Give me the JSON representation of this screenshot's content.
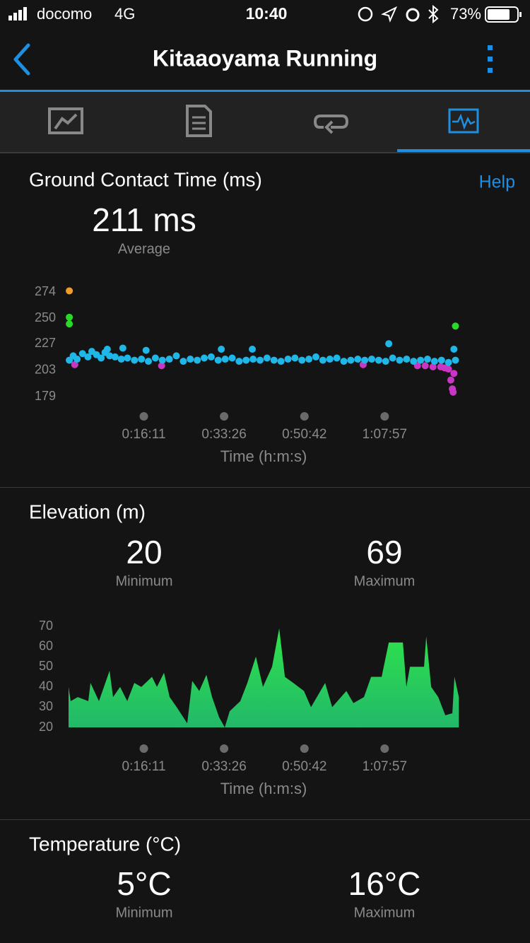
{
  "status_bar": {
    "carrier": "docomo",
    "network": "4G",
    "time": "10:40",
    "battery": "73%"
  },
  "header": {
    "title": "Kitaaoyama Running"
  },
  "sections": [
    {
      "title": "Ground Contact Time (ms)",
      "help": "Help",
      "stats": [
        {
          "value": "211 ms",
          "label": "Average"
        }
      ]
    },
    {
      "title": "Elevation (m)",
      "stats": [
        {
          "value": "20",
          "label": "Minimum"
        },
        {
          "value": "69",
          "label": "Maximum"
        }
      ]
    },
    {
      "title": "Temperature (°C)",
      "stats": [
        {
          "value": "5°C",
          "label": "Minimum"
        },
        {
          "value": "16°C",
          "label": "Maximum"
        }
      ]
    }
  ],
  "chart_data": [
    {
      "type": "scatter",
      "x_label": "Time (h:m:s)",
      "xlim": [
        0,
        5040
      ],
      "ylim": [
        179,
        274
      ],
      "xticks": [
        {
          "value": 971,
          "label": "0:16:11"
        },
        {
          "value": 2006,
          "label": "0:33:26"
        },
        {
          "value": 3042,
          "label": "0:50:42"
        },
        {
          "value": 4077,
          "label": "1:07:57"
        }
      ],
      "yticks": [
        179,
        203,
        227,
        250,
        274
      ],
      "series": [
        {
          "color": "#c936c4",
          "x": [
            80,
            1200,
            3800,
            4500,
            4600,
            4700,
            4800,
            4850,
            4900,
            4930,
            4950,
            4960,
            4970
          ],
          "values": [
            208,
            207,
            208,
            207,
            207,
            206,
            206,
            205,
            204,
            194,
            186,
            183,
            200
          ]
        },
        {
          "color": "#1fb6e8",
          "x": [
            10,
            60,
            110,
            180,
            250,
            300,
            360,
            420,
            470,
            530,
            600,
            680,
            760,
            850,
            940,
            1030,
            1120,
            1210,
            1300,
            1390,
            1480,
            1570,
            1660,
            1750,
            1840,
            1930,
            2020,
            2110,
            2200,
            2290,
            2380,
            2470,
            2560,
            2650,
            2740,
            2830,
            2920,
            3010,
            3100,
            3190,
            3280,
            3370,
            3460,
            3550,
            3640,
            3730,
            3820,
            3910,
            4000,
            4090,
            4180,
            4270,
            4360,
            4450,
            4540,
            4630,
            4720,
            4810,
            4900,
            4990,
            1000,
            1970,
            2370,
            4130,
            4970,
            500,
            700
          ],
          "values": [
            212,
            216,
            213,
            218,
            215,
            220,
            217,
            214,
            219,
            216,
            215,
            213,
            214,
            212,
            213,
            211,
            214,
            212,
            213,
            216,
            211,
            213,
            212,
            214,
            215,
            212,
            213,
            214,
            211,
            212,
            213,
            212,
            214,
            212,
            211,
            213,
            214,
            212,
            213,
            215,
            212,
            213,
            214,
            211,
            212,
            213,
            212,
            213,
            212,
            211,
            214,
            212,
            213,
            211,
            212,
            213,
            211,
            212,
            210,
            212,
            221,
            222,
            222,
            227,
            222,
            222,
            223
          ]
        },
        {
          "color": "#2ad82a",
          "x": [
            10,
            10,
            4990
          ],
          "values": [
            251,
            245,
            243
          ]
        },
        {
          "color": "#f29b26",
          "x": [
            10
          ],
          "values": [
            275
          ]
        }
      ]
    },
    {
      "type": "area",
      "x_label": "Time (h:m:s)",
      "xlim": [
        0,
        5040
      ],
      "ylim": [
        20,
        70
      ],
      "xticks": [
        {
          "value": 971,
          "label": "0:16:11"
        },
        {
          "value": 2006,
          "label": "0:33:26"
        },
        {
          "value": 3042,
          "label": "0:50:42"
        },
        {
          "value": 4077,
          "label": "1:07:57"
        }
      ],
      "yticks": [
        20,
        30,
        40,
        50,
        60,
        70
      ],
      "x": [
        0,
        27,
        119,
        255,
        283,
        392,
        529,
        574,
        665,
        757,
        848,
        939,
        1076,
        1140,
        1231,
        1304,
        1395,
        1531,
        1595,
        1686,
        1778,
        1851,
        1942,
        2015,
        2078,
        2215,
        2306,
        2416,
        2507,
        2625,
        2717,
        2790,
        2899,
        3036,
        3127,
        3309,
        3400,
        3583,
        3674,
        3810,
        3902,
        4038,
        4130,
        4312,
        4357,
        4403,
        4585,
        4613,
        4677,
        4768,
        4859,
        4950,
        4977,
        5034
      ],
      "values": [
        40,
        33,
        35,
        33,
        42,
        33,
        48,
        35,
        40,
        33,
        42,
        40,
        45,
        40,
        47,
        35,
        30,
        22,
        43,
        38,
        46,
        35,
        25,
        20,
        28,
        33,
        42,
        55,
        40,
        50,
        69,
        45,
        42,
        38,
        30,
        42,
        30,
        38,
        32,
        35,
        45,
        45,
        62,
        62,
        40,
        50,
        50,
        65,
        40,
        35,
        26,
        27,
        45,
        35
      ]
    }
  ]
}
